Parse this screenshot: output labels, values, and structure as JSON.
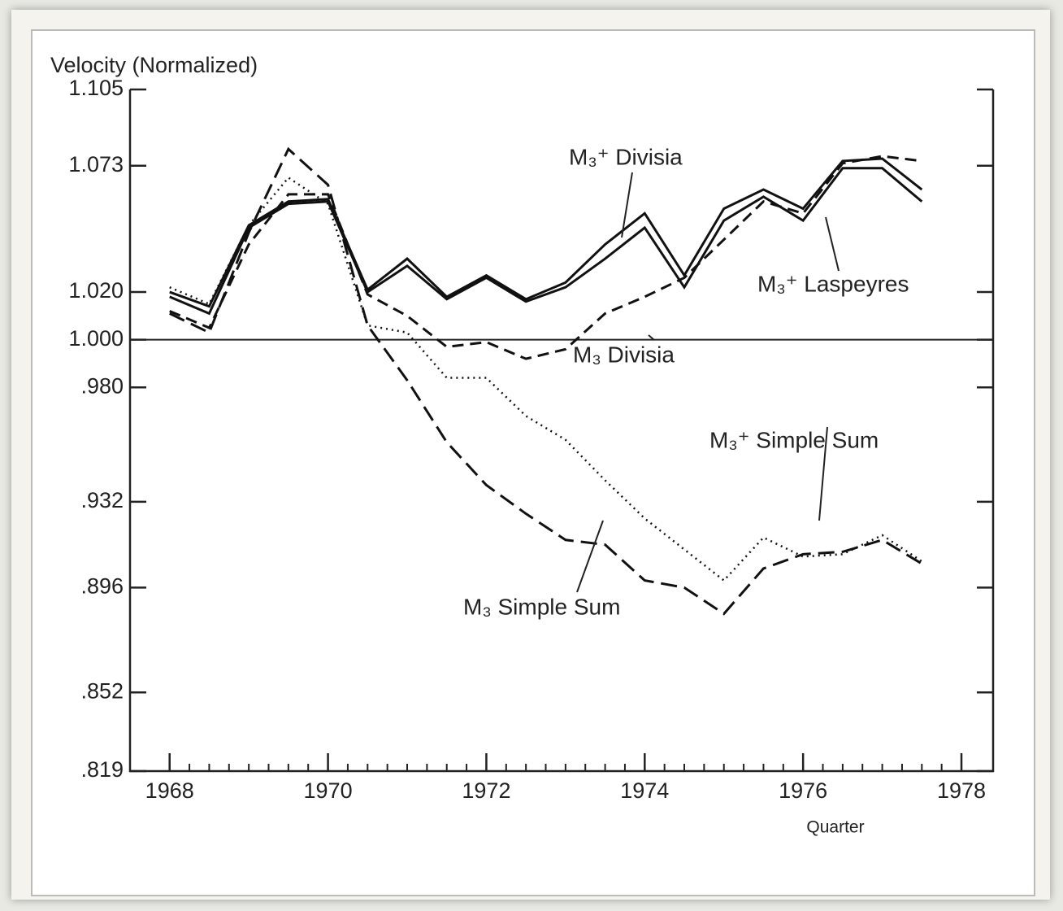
{
  "chart_data": {
    "type": "line",
    "y_label": "Velocity (Normalized)",
    "x_label": "Quarter",
    "x": [
      1968,
      1968.5,
      1969,
      1969.5,
      1970,
      1970.5,
      1971,
      1971.5,
      1972,
      1972.5,
      1973,
      1973.5,
      1974,
      1974.5,
      1975,
      1975.5,
      1976,
      1976.5,
      1977,
      1977.5
    ],
    "xlim": [
      1967.5,
      1978.4
    ],
    "xticks": [
      1968,
      1970,
      1972,
      1974,
      1976,
      1978
    ],
    "ylim": [
      0.819,
      1.105
    ],
    "yticks": [
      {
        "value": 0.819,
        "label": ".819"
      },
      {
        "value": 0.852,
        "label": ".852"
      },
      {
        "value": 0.896,
        "label": ".896"
      },
      {
        "value": 0.932,
        "label": ".932"
      },
      {
        "value": 0.98,
        "label": ".980"
      },
      {
        "value": 1,
        "label": "1.000"
      },
      {
        "value": 1.02,
        "label": "1.020"
      },
      1.073,
      1.105
    ],
    "hline": 1,
    "series": [
      {
        "name": "M₃⁺ Divisia",
        "color": "#111111",
        "style": "solid",
        "values": [
          1.02,
          1.014,
          1.048,
          1.058,
          1.059,
          1.021,
          1.034,
          1.018,
          1.027,
          1.017,
          1.024,
          1.04,
          1.053,
          1.027,
          1.055,
          1.063,
          1.055,
          1.075,
          1.076,
          1.063
        ]
      },
      {
        "name": "M₃⁺ Laspeyres",
        "color": "#111111",
        "style": "solid",
        "values": [
          1.018,
          1.011,
          1.047,
          1.057,
          1.058,
          1.02,
          1.031,
          1.017,
          1.026,
          1.016,
          1.022,
          1.034,
          1.047,
          1.022,
          1.05,
          1.06,
          1.05,
          1.072,
          1.072,
          1.058
        ]
      },
      {
        "name": "M₃ Divisia",
        "color": "#111111",
        "style": "dashed",
        "values": [
          1.012,
          1.005,
          1.04,
          1.061,
          1.061,
          1.019,
          1.01,
          0.997,
          0.999,
          0.992,
          0.996,
          1.011,
          1.018,
          1.026,
          1.042,
          1.058,
          1.053,
          1.074,
          1.077,
          1.075
        ]
      },
      {
        "name": "M₃⁺ Simple Sum",
        "color": "#111111",
        "style": "dotted",
        "values": [
          1.022,
          1.015,
          1.048,
          1.068,
          1.057,
          1.006,
          1.003,
          0.984,
          0.984,
          0.968,
          0.958,
          0.941,
          0.925,
          0.912,
          0.899,
          0.917,
          0.909,
          0.91,
          0.918,
          0.907
        ]
      },
      {
        "name": "M₃ Simple Sum",
        "color": "#111111",
        "style": "long-dashed",
        "values": [
          1.011,
          1.003,
          1.045,
          1.08,
          1.065,
          1.006,
          0.983,
          0.957,
          0.939,
          0.927,
          0.916,
          0.914,
          0.899,
          0.896,
          0.885,
          0.904,
          0.91,
          0.911,
          0.916,
          0.906
        ]
      }
    ]
  }
}
